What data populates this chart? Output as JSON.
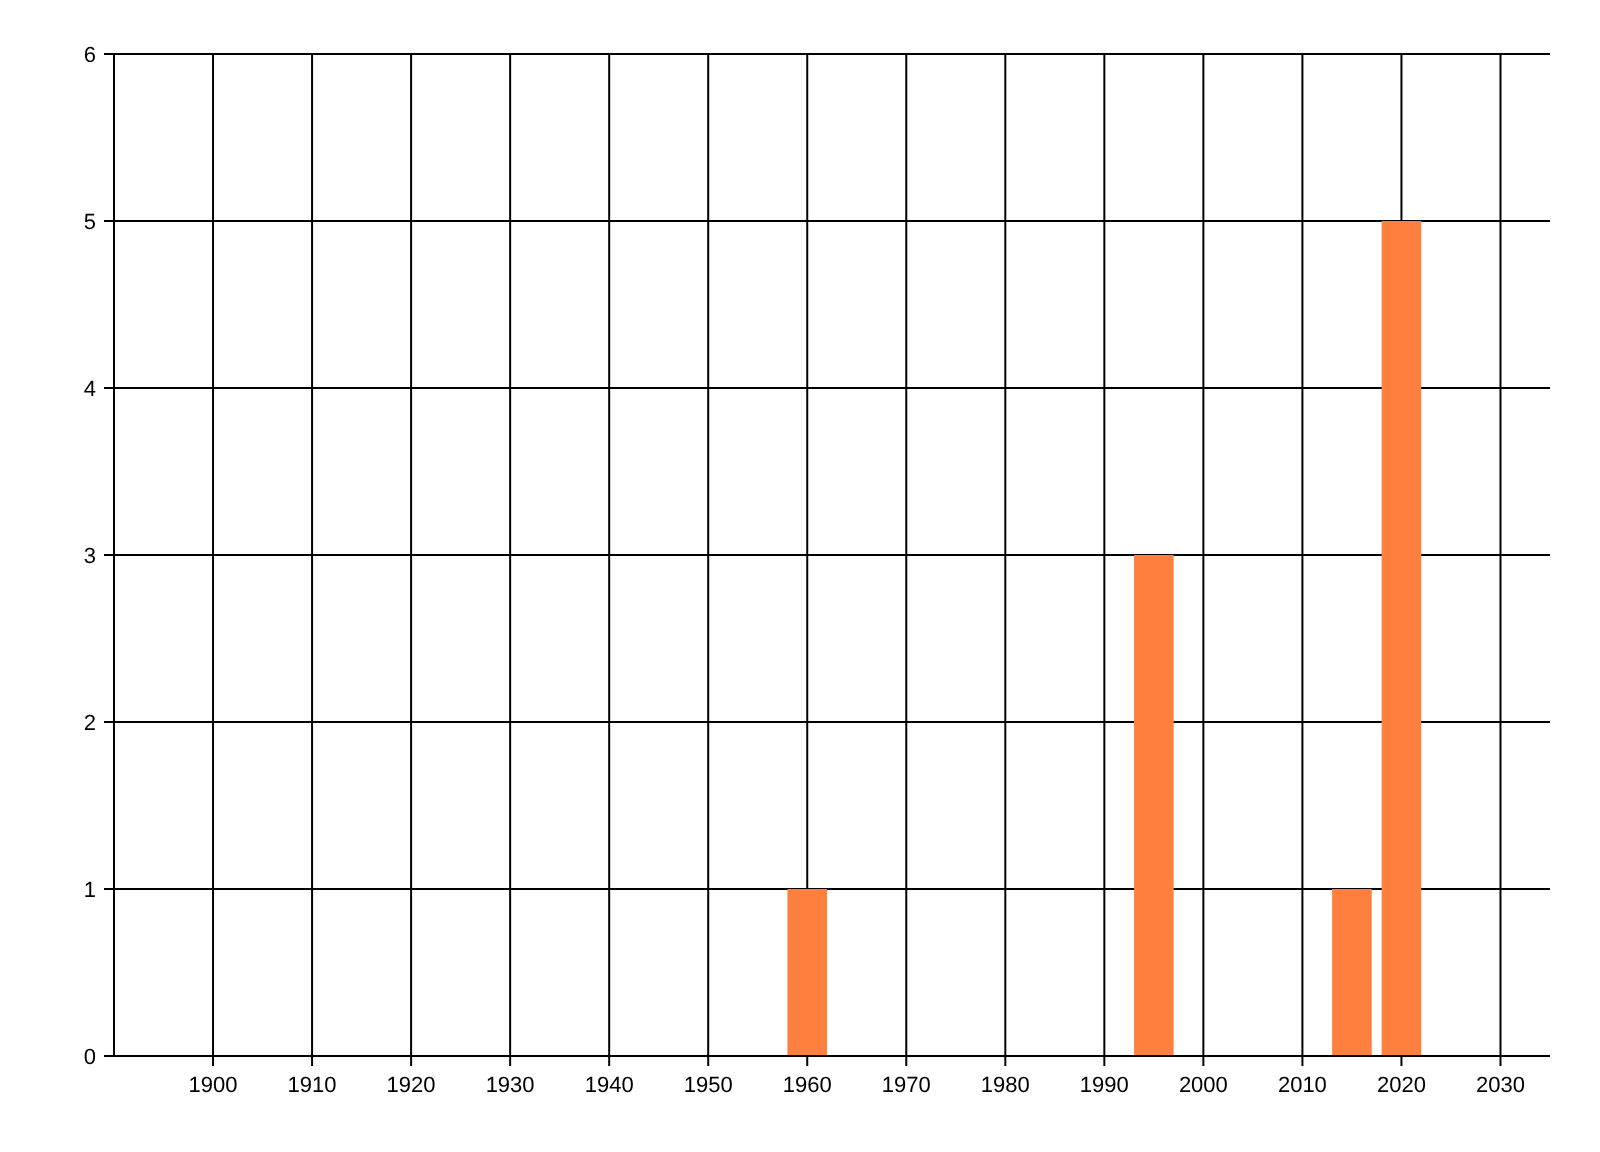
{
  "chart_data": {
    "type": "bar",
    "x": [
      1960,
      1995,
      2015,
      2020
    ],
    "values": [
      1,
      3,
      1,
      5
    ],
    "color": "#ff7f3f",
    "xlim": [
      1890,
      2035
    ],
    "ylim": [
      0,
      6
    ],
    "xticks": [
      1900,
      1910,
      1920,
      1930,
      1940,
      1950,
      1960,
      1970,
      1980,
      1990,
      2000,
      2010,
      2020,
      2030
    ],
    "yticks": [
      0,
      1,
      2,
      3,
      4,
      5,
      6
    ],
    "grid": true
  }
}
